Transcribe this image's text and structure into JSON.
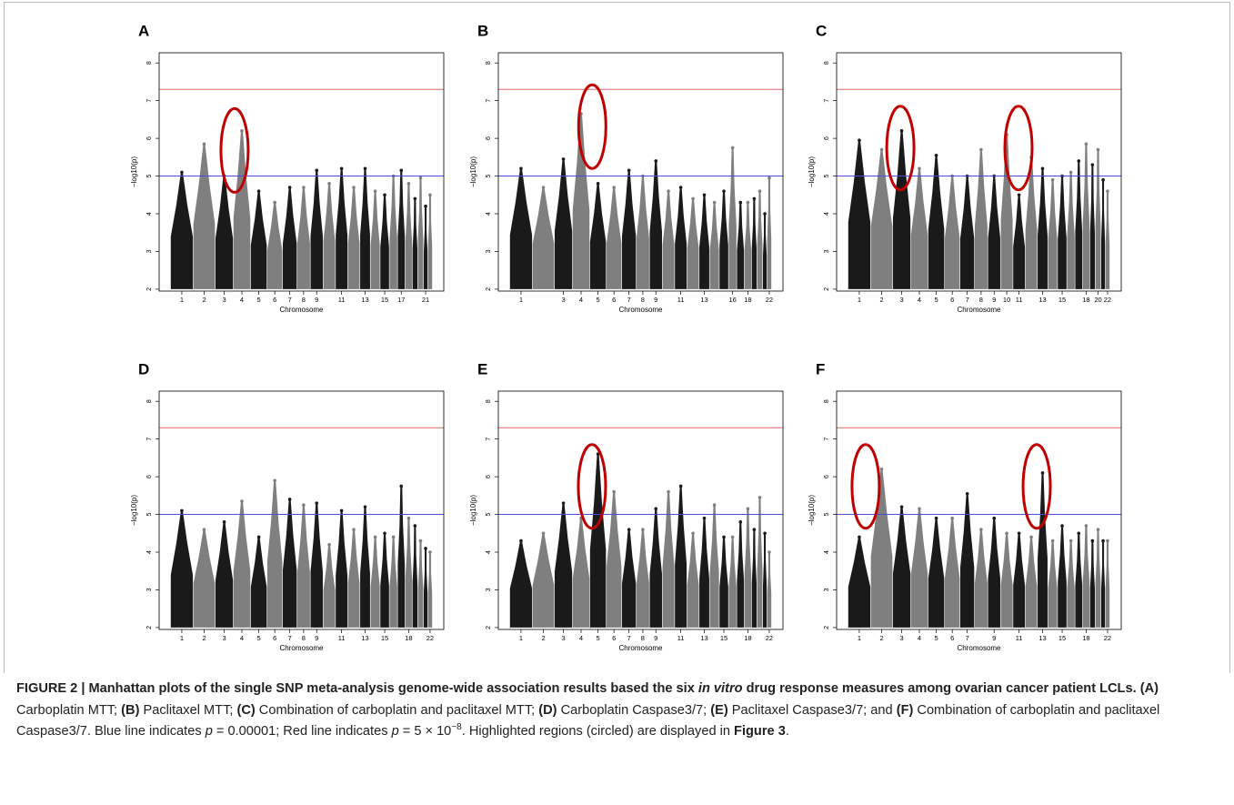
{
  "chart_data": [
    {
      "type": "manhattan",
      "title": "A",
      "xlabel": "Chromosome",
      "ylabel": "−log10(p)",
      "categories": [
        "1",
        "2",
        "3",
        "4",
        "5",
        "6",
        "7",
        "8",
        "9",
        null,
        "11",
        null,
        "13",
        null,
        "15",
        null,
        "17",
        null,
        null,
        null,
        "21",
        null
      ],
      "values": [
        5.1,
        5.85,
        5.0,
        6.2,
        4.6,
        4.3,
        4.7,
        4.7,
        5.15,
        4.8,
        5.2,
        4.7,
        5.2,
        4.6,
        4.5,
        5.0,
        5.15,
        4.8,
        4.4,
        4.95,
        4.2,
        4.5
      ],
      "colors": [
        "#1a1a1a",
        "#7f7f7f"
      ],
      "ylim": [
        1.95,
        8.27
      ],
      "yticks": [
        2,
        3,
        4,
        5,
        6,
        7,
        8
      ],
      "hlines": [
        {
          "value": 5,
          "color": "#4a4ae8"
        },
        {
          "value": 7.3,
          "color": "#e46a6a"
        }
      ]
    },
    {
      "type": "manhattan",
      "title": "B",
      "xlabel": "Chromosome",
      "ylabel": "−log10(p)",
      "categories": [
        "1",
        null,
        "3",
        "4",
        "5",
        "6",
        "7",
        "8",
        "9",
        null,
        "11",
        null,
        "13",
        null,
        null,
        "16",
        null,
        "18",
        null,
        null,
        null,
        "22"
      ],
      "values": [
        5.2,
        4.7,
        5.45,
        6.65,
        4.8,
        4.7,
        5.15,
        5.0,
        5.4,
        4.6,
        4.7,
        4.4,
        4.5,
        4.3,
        4.6,
        5.75,
        4.3,
        4.3,
        4.4,
        4.6,
        4.0,
        4.95
      ],
      "colors": [
        "#1a1a1a",
        "#7f7f7f"
      ],
      "ylim": [
        1.95,
        8.27
      ],
      "yticks": [
        2,
        3,
        4,
        5,
        6,
        7,
        8
      ],
      "hlines": [
        {
          "value": 5,
          "color": "#4a4ae8"
        },
        {
          "value": 7.3,
          "color": "#e46a6a"
        }
      ]
    },
    {
      "type": "manhattan",
      "title": "C",
      "xlabel": "Chromosome",
      "ylabel": "−log10(p)",
      "categories": [
        "1",
        "2",
        "3",
        "4",
        "5",
        "6",
        "7",
        "8",
        "9",
        "10",
        "11",
        null,
        "13",
        null,
        "15",
        null,
        null,
        "18",
        null,
        "20",
        null,
        "22"
      ],
      "values": [
        5.95,
        5.7,
        6.2,
        5.2,
        5.55,
        5.0,
        5.0,
        5.7,
        5.0,
        6.1,
        4.5,
        5.5,
        5.2,
        4.9,
        5.0,
        5.1,
        5.4,
        5.85,
        5.3,
        5.7,
        4.9,
        4.6
      ],
      "colors": [
        "#1a1a1a",
        "#7f7f7f"
      ],
      "ylim": [
        1.95,
        8.27
      ],
      "yticks": [
        2,
        3,
        4,
        5,
        6,
        7,
        8
      ],
      "hlines": [
        {
          "value": 5,
          "color": "#4a4ae8"
        },
        {
          "value": 7.3,
          "color": "#e46a6a"
        }
      ]
    },
    {
      "type": "manhattan",
      "title": "D",
      "xlabel": "Chromosome",
      "ylabel": "−log10(p)",
      "categories": [
        "1",
        "2",
        "3",
        "4",
        "5",
        "6",
        "7",
        "8",
        "9",
        null,
        "11",
        null,
        "13",
        null,
        "15",
        null,
        null,
        "18",
        null,
        null,
        null,
        "22"
      ],
      "values": [
        5.1,
        4.6,
        4.8,
        5.35,
        4.4,
        5.9,
        5.4,
        5.25,
        5.3,
        4.2,
        5.1,
        4.6,
        5.2,
        4.4,
        4.5,
        4.4,
        5.75,
        4.9,
        4.7,
        4.3,
        4.1,
        4.0
      ],
      "colors": [
        "#1a1a1a",
        "#7f7f7f"
      ],
      "ylim": [
        1.95,
        8.27
      ],
      "yticks": [
        2,
        3,
        4,
        5,
        6,
        7,
        8
      ],
      "hlines": [
        {
          "value": 5,
          "color": "#4a4ae8"
        },
        {
          "value": 7.3,
          "color": "#e46a6a"
        }
      ]
    },
    {
      "type": "manhattan",
      "title": "E",
      "xlabel": "Chromosome",
      "ylabel": "−log10(p)",
      "categories": [
        "1",
        "2",
        "3",
        "4",
        "5",
        "6",
        "7",
        "8",
        "9",
        null,
        "11",
        null,
        "13",
        null,
        "15",
        null,
        null,
        "18",
        null,
        null,
        null,
        "22"
      ],
      "values": [
        4.3,
        4.5,
        5.3,
        4.9,
        6.6,
        5.6,
        4.6,
        4.6,
        5.15,
        5.6,
        5.75,
        4.5,
        4.9,
        5.25,
        4.4,
        4.4,
        4.8,
        5.15,
        4.6,
        5.45,
        4.5,
        4.0
      ],
      "colors": [
        "#1a1a1a",
        "#7f7f7f"
      ],
      "ylim": [
        1.95,
        8.27
      ],
      "yticks": [
        2,
        3,
        4,
        5,
        6,
        7,
        8
      ],
      "hlines": [
        {
          "value": 5,
          "color": "#4a4ae8"
        },
        {
          "value": 7.3,
          "color": "#e46a6a"
        }
      ]
    },
    {
      "type": "manhattan",
      "title": "F",
      "xlabel": "Chromosome",
      "ylabel": "−log10(p)",
      "categories": [
        "1",
        "2",
        "3",
        "4",
        "5",
        "6",
        "7",
        null,
        "9",
        null,
        "11",
        null,
        "13",
        null,
        "15",
        null,
        null,
        "18",
        null,
        null,
        null,
        "22"
      ],
      "values": [
        4.4,
        6.2,
        5.2,
        5.15,
        4.9,
        4.9,
        5.55,
        4.6,
        4.9,
        4.5,
        4.5,
        4.4,
        6.1,
        4.3,
        4.7,
        4.3,
        4.5,
        4.7,
        4.3,
        4.6,
        4.3,
        4.3
      ],
      "colors": [
        "#1a1a1a",
        "#7f7f7f"
      ],
      "ylim": [
        1.95,
        8.27
      ],
      "yticks": [
        2,
        3,
        4,
        5,
        6,
        7,
        8
      ],
      "hlines": [
        {
          "value": 5,
          "color": "#4a4ae8"
        },
        {
          "value": 7.3,
          "color": "#e46a6a"
        }
      ]
    }
  ],
  "caption": {
    "parts": [
      "FIGURE 2 | Manhattan plots of the single SNP meta-analysis genome-wide association results based the six ",
      "in vitro",
      " drug response measures among ovarian cancer patient LCLs. ",
      "(A)",
      " Carboplatin MTT; ",
      "(B)",
      " Paclitaxel MTT; ",
      "(C)",
      " Combination of carboplatin and paclitaxel MTT; ",
      "(D)",
      " Carboplatin Caspase3/7; ",
      "(E)",
      " Paclitaxel Caspase3/7; and ",
      "(F)",
      " Combination of carboplatin and paclitaxel Caspase3/7. Blue line indicates ",
      "p",
      " = 0.00001; Red line indicates ",
      "p",
      " = 5 × 10",
      "−8",
      ". Highlighted regions (circled) are displayed in ",
      "Figure 3",
      "."
    ]
  }
}
